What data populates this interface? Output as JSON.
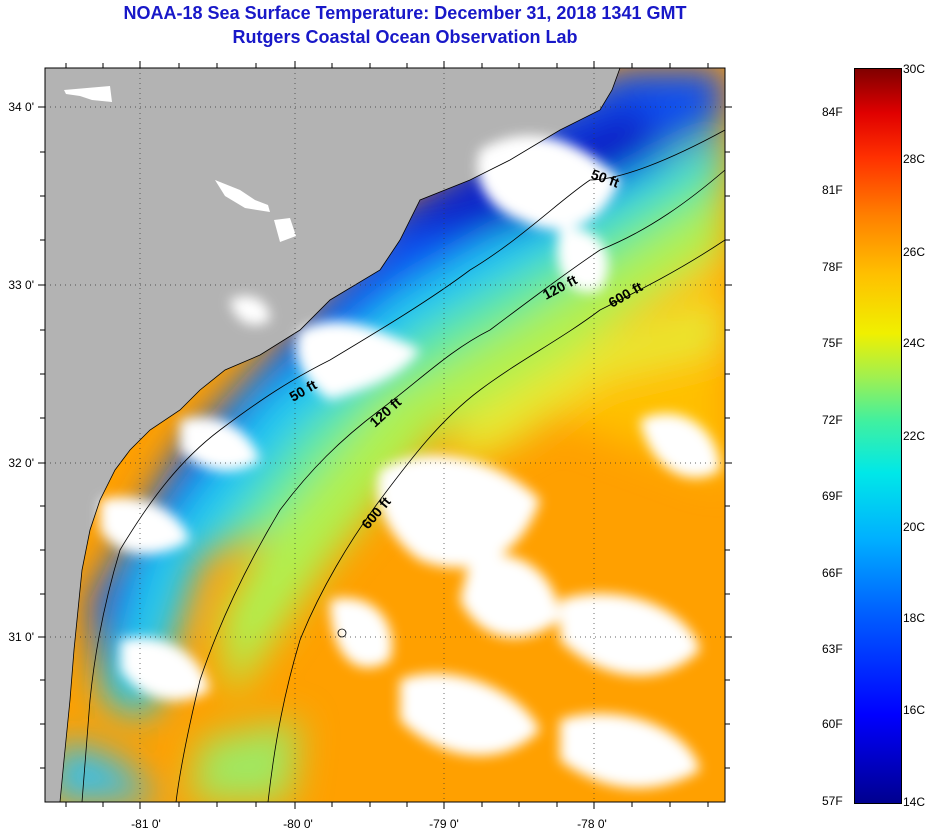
{
  "title": {
    "line1": "NOAA-18 Sea Surface Temperature:  December 31, 2018 1341 GMT",
    "line2": "Rutgers Coastal Ocean Observation Lab"
  },
  "map": {
    "lat_labels": [
      "34 0'",
      "33 0'",
      "32 0'",
      "31 0'"
    ],
    "lon_labels": [
      "-81 0'",
      "-80 0'",
      "-79 0'",
      "-78 0'"
    ],
    "isobath_labels": [
      "50 ft",
      "120 ft",
      "600 ft",
      "50 ft",
      "120 ft",
      "600 ft"
    ],
    "colors": {
      "land": "#b3b3b3",
      "cloud": "#ffffff"
    }
  },
  "colorbar": {
    "fahrenheit": [
      "84F",
      "81F",
      "78F",
      "75F",
      "72F",
      "69F",
      "66F",
      "63F",
      "60F",
      "57F"
    ],
    "celsius": [
      "30C",
      "28C",
      "26C",
      "24C",
      "22C",
      "20C",
      "18C",
      "16C",
      "14C"
    ]
  }
}
